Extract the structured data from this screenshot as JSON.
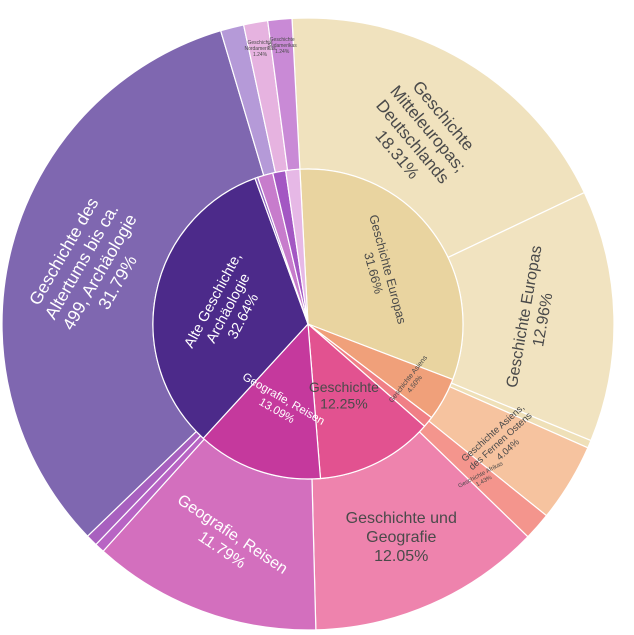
{
  "chart_data": {
    "type": "sunburst",
    "title": "",
    "inner_ring": [
      {
        "label": "Geschichte Europas",
        "percent": "31.66%",
        "value": 31.66,
        "color": "#e9d4a0",
        "text_color": "#4a4a4a"
      },
      {
        "label": "Geschichte Asiens",
        "percent": "4.50%",
        "value": 4.5,
        "color": "#f0a07a",
        "text_color": "#4a4a4a"
      },
      {
        "label": "",
        "percent": "",
        "value": 1.14,
        "color": "#f07f86",
        "text_color": "#4a4a4a"
      },
      {
        "label": "Geschichte",
        "percent": "12.25%",
        "value": 12.25,
        "color": "#e25290",
        "text_color": "#4a4a4a"
      },
      {
        "label": "Geografie, Reisen",
        "percent": "13.09%",
        "value": 13.09,
        "color": "#c5399d",
        "text_color": "#ffffff"
      },
      {
        "label": "Alte Geschichte, Archäologie",
        "percent": "32.64%",
        "value": 32.64,
        "color": "#4c2a8a",
        "text_color": "#ffffff"
      },
      {
        "label": "",
        "percent": "",
        "value": 0.3,
        "color": "#8e63c0",
        "text_color": "#ffffff"
      },
      {
        "label": "",
        "percent": "",
        "value": 1.6,
        "color": "#c77ccc",
        "text_color": "#4a4a4a"
      },
      {
        "label": "",
        "percent": "",
        "value": 1.35,
        "color": "#a357c3",
        "text_color": "#4a4a4a"
      },
      {
        "label": "",
        "percent": "",
        "value": 1.47,
        "color": "#e6b8e6",
        "text_color": "#4a4a4a"
      }
    ],
    "outer_ring": [
      {
        "label": "Geschichte Mitteleuropas; Deutschlands",
        "percent": "18.31%",
        "value": 18.31,
        "color": "#f0e2be",
        "text_color": "#4a4a4a"
      },
      {
        "label": "Geschichte Europas",
        "percent": "12.96%",
        "value": 12.96,
        "color": "#f1e3c0",
        "text_color": "#4a4a4a"
      },
      {
        "label": "",
        "percent": "",
        "value": 0.4,
        "color": "#efe0b8",
        "text_color": "#4a4a4a"
      },
      {
        "label": "Geschichte Asiens, des Fernen Ostens",
        "percent": "4.04%",
        "value": 4.04,
        "color": "#f6c39f",
        "text_color": "#4a4a4a"
      },
      {
        "label": "Geschichte Afrikas",
        "percent": "1.43%",
        "value": 1.43,
        "color": "#f4958d",
        "text_color": "#4a4a4a"
      },
      {
        "label": "Geschichte und Geografie",
        "percent": "12.05%",
        "value": 12.05,
        "color": "#ee83ad",
        "text_color": "#4a4a4a"
      },
      {
        "label": "Geografie, Reisen",
        "percent": "11.79%",
        "value": 11.79,
        "color": "#d36fbe",
        "text_color": "#ffffff"
      },
      {
        "label": "",
        "percent": "",
        "value": 0.5,
        "color": "#b864c4",
        "text_color": "#4a4a4a"
      },
      {
        "label": "",
        "percent": "",
        "value": 0.6,
        "color": "#a860bf",
        "text_color": "#4a4a4a"
      },
      {
        "label": "Geschichte des Altertums bis ca. 499, Archäologie",
        "percent": "31.79%",
        "value": 31.79,
        "color": "#7f67b0",
        "text_color": "#ffffff"
      },
      {
        "label": "",
        "percent": "",
        "value": 1.2,
        "color": "#b59ad8",
        "text_color": "#4a4a4a"
      },
      {
        "label": "Geschichte Nordamerikas",
        "percent": "1.24%",
        "value": 1.24,
        "color": "#e6b3e0",
        "text_color": "#4a4a4a"
      },
      {
        "label": "Geschichte Südamerikas",
        "percent": "1.24%",
        "value": 1.24,
        "color": "#c98ad6",
        "text_color": "#4a4a4a"
      }
    ]
  }
}
